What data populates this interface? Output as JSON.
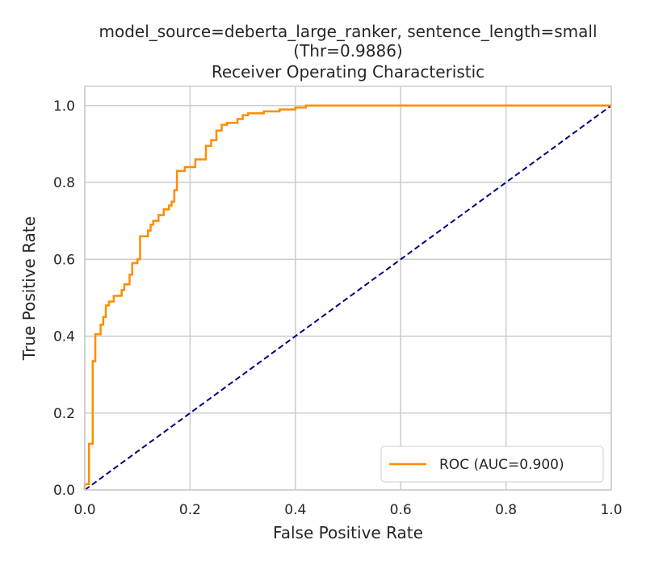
{
  "chart_data": {
    "type": "line",
    "title_lines": [
      "model_source=deberta_large_ranker, sentence_length=small",
      "(Thr=0.9886)",
      "Receiver Operating Characteristic"
    ],
    "xlabel": "False Positive Rate",
    "ylabel": "True Positive Rate",
    "xlim": [
      0.0,
      1.0
    ],
    "ylim": [
      0.0,
      1.05
    ],
    "xticks": [
      0.0,
      0.2,
      0.4,
      0.6,
      0.8,
      1.0
    ],
    "yticks": [
      0.0,
      0.2,
      0.4,
      0.6,
      0.8,
      1.0
    ],
    "xtick_labels": [
      "0.0",
      "0.2",
      "0.4",
      "0.6",
      "0.8",
      "1.0"
    ],
    "ytick_labels": [
      "0.0",
      "0.2",
      "0.4",
      "0.6",
      "0.8",
      "1.0"
    ],
    "grid": true,
    "legend_position": "lower-right",
    "series": [
      {
        "name": "ROC (AUC=0.900)",
        "style": "solid",
        "color": "#ff8c00",
        "x": [
          0.0,
          0.0,
          0.008,
          0.008,
          0.015,
          0.015,
          0.02,
          0.02,
          0.03,
          0.03,
          0.035,
          0.035,
          0.04,
          0.04,
          0.046,
          0.046,
          0.055,
          0.055,
          0.07,
          0.07,
          0.075,
          0.075,
          0.085,
          0.085,
          0.09,
          0.09,
          0.1,
          0.1,
          0.105,
          0.105,
          0.12,
          0.12,
          0.125,
          0.125,
          0.13,
          0.13,
          0.14,
          0.14,
          0.15,
          0.15,
          0.16,
          0.16,
          0.165,
          0.165,
          0.17,
          0.17,
          0.175,
          0.175,
          0.19,
          0.19,
          0.21,
          0.21,
          0.23,
          0.23,
          0.24,
          0.24,
          0.25,
          0.25,
          0.26,
          0.26,
          0.27,
          0.27,
          0.29,
          0.29,
          0.3,
          0.3,
          0.31,
          0.31,
          0.34,
          0.34,
          0.37,
          0.37,
          0.4,
          0.4,
          0.42,
          0.42,
          0.45,
          1.0
        ],
        "y": [
          0.0,
          0.015,
          0.015,
          0.12,
          0.12,
          0.335,
          0.335,
          0.405,
          0.405,
          0.43,
          0.43,
          0.45,
          0.45,
          0.48,
          0.48,
          0.49,
          0.49,
          0.505,
          0.505,
          0.52,
          0.52,
          0.535,
          0.535,
          0.56,
          0.56,
          0.59,
          0.59,
          0.6,
          0.6,
          0.66,
          0.66,
          0.675,
          0.675,
          0.69,
          0.69,
          0.7,
          0.7,
          0.715,
          0.715,
          0.73,
          0.73,
          0.74,
          0.74,
          0.75,
          0.75,
          0.78,
          0.78,
          0.83,
          0.83,
          0.84,
          0.84,
          0.86,
          0.86,
          0.895,
          0.895,
          0.91,
          0.91,
          0.935,
          0.935,
          0.95,
          0.95,
          0.955,
          0.955,
          0.965,
          0.965,
          0.975,
          0.975,
          0.98,
          0.98,
          0.985,
          0.985,
          0.99,
          0.99,
          0.995,
          0.995,
          1.0,
          1.0,
          1.0
        ]
      },
      {
        "style": "dashed",
        "color": "#000080",
        "x": [
          0.0,
          1.0
        ],
        "y": [
          0.0,
          1.0
        ]
      }
    ],
    "legend": {
      "entries": [
        "ROC (AUC=0.900)"
      ]
    }
  }
}
